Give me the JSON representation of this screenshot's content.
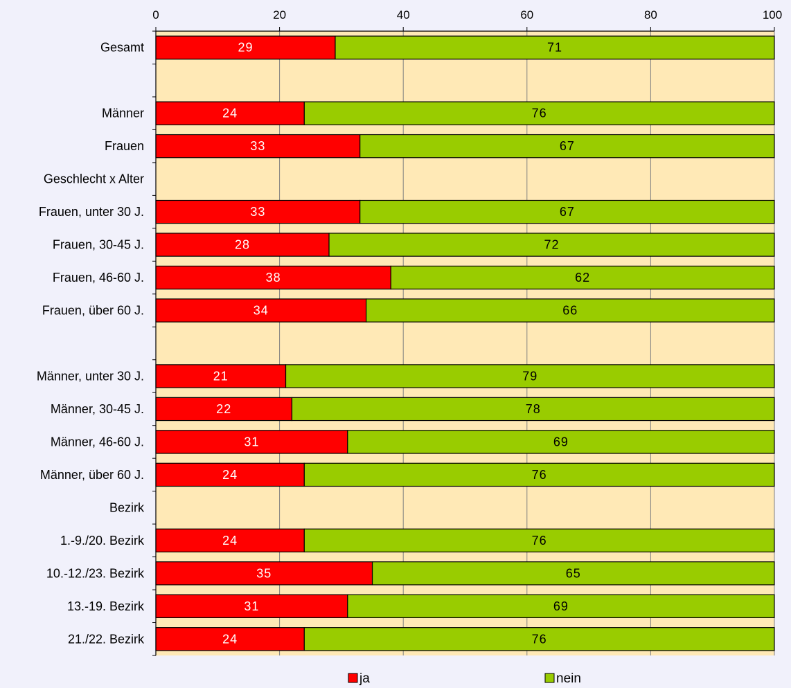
{
  "chart_data": {
    "type": "bar",
    "orientation": "horizontal",
    "stacked": true,
    "title": "",
    "xlabel": "",
    "ylabel": "",
    "xlim": [
      0,
      100
    ],
    "x_ticks": [
      "0",
      "20",
      "40",
      "60",
      "80",
      "100"
    ],
    "grid": true,
    "legend_position": "bottom",
    "categories": [
      "Gesamt",
      "",
      "Männer",
      "Frauen",
      "Geschlecht x Alter",
      "Frauen, unter 30 J.",
      "Frauen, 30-45 J.",
      "Frauen, 46-60 J.",
      "Frauen, über 60 J.",
      "",
      "Männer, unter 30 J.",
      "Männer, 30-45 J.",
      "Männer, 46-60 J.",
      "Männer, über 60 J.",
      "Bezirk",
      "1.-9./20. Bezirk",
      "10.-12./23. Bezirk",
      "13.-19. Bezirk",
      "21./22. Bezirk"
    ],
    "series": [
      {
        "name": "ja",
        "color": "#ff0000",
        "label_color": "#ffffff",
        "values": [
          29,
          null,
          24,
          33,
          null,
          33,
          28,
          38,
          34,
          null,
          21,
          22,
          31,
          24,
          null,
          24,
          35,
          31,
          24
        ]
      },
      {
        "name": "nein",
        "color": "#99cc00",
        "label_color": "#000000",
        "values": [
          71,
          null,
          76,
          67,
          null,
          67,
          72,
          62,
          66,
          null,
          79,
          78,
          69,
          76,
          null,
          76,
          65,
          69,
          76
        ]
      }
    ],
    "colors": {
      "plot_background": "#ffe9b6",
      "page_background": "#f1f1fb",
      "gridline": "#808080"
    }
  }
}
